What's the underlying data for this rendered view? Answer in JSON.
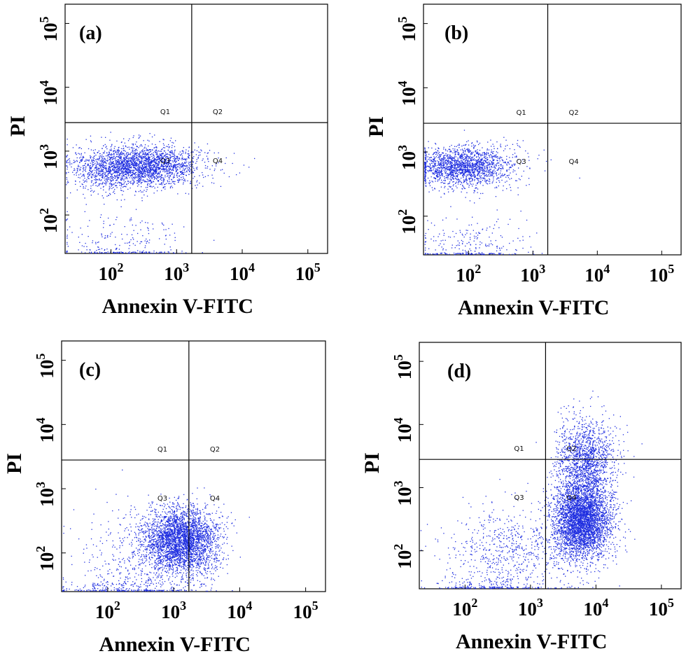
{
  "colors": {
    "dots": "#1f2ee0",
    "frame": "#000000",
    "background": "#ffffff"
  },
  "chart_data": [
    {
      "type": "scatter",
      "panel_label": "(a)",
      "xlabel": "Annexin V-FITC",
      "ylabel": "PI",
      "x_scale": "log",
      "y_scale": "log",
      "xlim": [
        20,
        200000
      ],
      "ylim": [
        25,
        200000
      ],
      "x_ticks": [
        "10^2",
        "10^3",
        "10^4",
        "10^5"
      ],
      "y_ticks": [
        "10^2",
        "10^3",
        "10^4",
        "10^5"
      ],
      "gate": {
        "x": 1700,
        "y": 2800
      },
      "quadrant_labels": [
        "Q1",
        "Q2",
        "Q3",
        "Q4"
      ],
      "populations": [
        {
          "cx": 300,
          "cy": 600,
          "sx": 0.45,
          "sy": 0.16,
          "n": 2300
        },
        {
          "cx": 80,
          "cy": 500,
          "sx": 0.3,
          "sy": 0.2,
          "n": 400
        },
        {
          "cx": 150,
          "cy": 30,
          "sx": 0.5,
          "sy": 0.3,
          "n": 250
        }
      ]
    },
    {
      "type": "scatter",
      "panel_label": "(b)",
      "xlabel": "Annexin V-FITC",
      "ylabel": "PI",
      "x_scale": "log",
      "y_scale": "log",
      "xlim": [
        20,
        200000
      ],
      "ylim": [
        25,
        200000
      ],
      "x_ticks": [
        "10^2",
        "10^3",
        "10^4",
        "10^5"
      ],
      "y_ticks": [
        "10^2",
        "10^3",
        "10^4",
        "10^5"
      ],
      "gate": {
        "x": 1700,
        "y": 2800
      },
      "quadrant_labels": [
        "Q1",
        "Q2",
        "Q3",
        "Q4"
      ],
      "populations": [
        {
          "cx": 70,
          "cy": 580,
          "sx": 0.35,
          "sy": 0.15,
          "n": 1500
        },
        {
          "cx": 200,
          "cy": 650,
          "sx": 0.35,
          "sy": 0.18,
          "n": 300
        },
        {
          "cx": 100,
          "cy": 32,
          "sx": 0.45,
          "sy": 0.25,
          "n": 260
        }
      ]
    },
    {
      "type": "scatter",
      "panel_label": "(c)",
      "xlabel": "Annexin V-FITC",
      "ylabel": "PI",
      "x_scale": "log",
      "y_scale": "log",
      "xlim": [
        20,
        200000
      ],
      "ylim": [
        25,
        200000
      ],
      "x_ticks": [
        "10^2",
        "10^3",
        "10^4",
        "10^5"
      ],
      "y_ticks": [
        "10^2",
        "10^3",
        "10^4",
        "10^5"
      ],
      "gate": {
        "x": 1700,
        "y": 2800
      },
      "quadrant_labels": [
        "Q1",
        "Q2",
        "Q3",
        "Q4"
      ],
      "populations": [
        {
          "cx": 1300,
          "cy": 160,
          "sx": 0.28,
          "sy": 0.25,
          "n": 3200
        },
        {
          "cx": 400,
          "cy": 80,
          "sx": 0.5,
          "sy": 0.4,
          "n": 500
        },
        {
          "cx": 150,
          "cy": 28,
          "sx": 0.5,
          "sy": 0.1,
          "n": 200
        }
      ]
    },
    {
      "type": "scatter",
      "panel_label": "(d)",
      "xlabel": "Annexin V-FITC",
      "ylabel": "PI",
      "x_scale": "log",
      "y_scale": "log",
      "xlim": [
        20,
        200000
      ],
      "ylim": [
        25,
        200000
      ],
      "x_ticks": [
        "10^2",
        "10^3",
        "10^4",
        "10^5"
      ],
      "y_ticks": [
        "10^2",
        "10^3",
        "10^4",
        "10^5"
      ],
      "gate": {
        "x": 1700,
        "y": 2800
      },
      "quadrant_labels": [
        "Q1",
        "Q2",
        "Q3",
        "Q4"
      ],
      "populations": [
        {
          "cx": 6000,
          "cy": 300,
          "sx": 0.22,
          "sy": 0.3,
          "n": 3800
        },
        {
          "cx": 7000,
          "cy": 2500,
          "sx": 0.22,
          "sy": 0.35,
          "n": 1600
        },
        {
          "cx": 500,
          "cy": 90,
          "sx": 0.5,
          "sy": 0.4,
          "n": 700
        },
        {
          "cx": 150,
          "cy": 28,
          "sx": 0.4,
          "sy": 0.08,
          "n": 120
        }
      ]
    }
  ]
}
